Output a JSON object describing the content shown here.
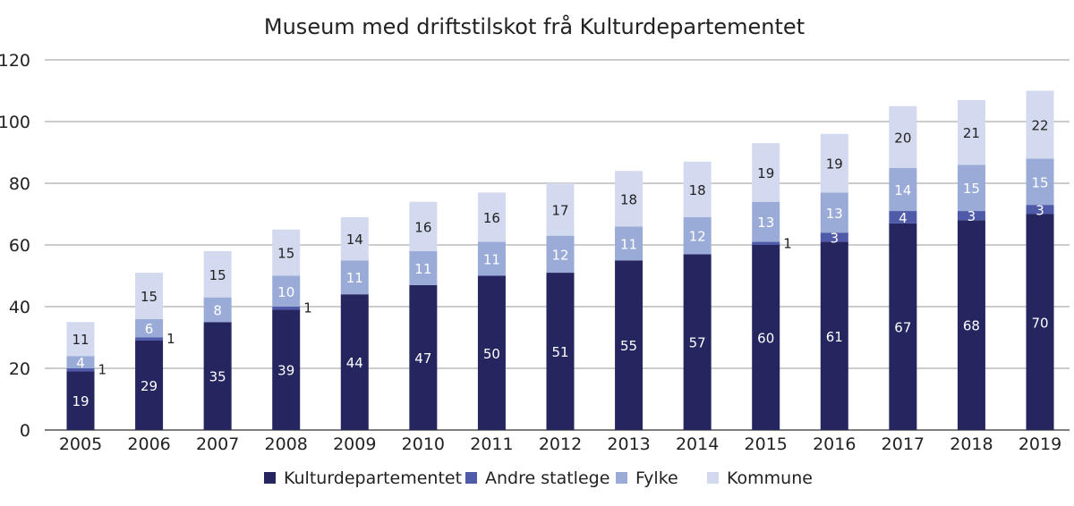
{
  "chart_data": {
    "type": "bar",
    "stacked": true,
    "title": "Museum med driftstilskot frå Kulturdepartementet",
    "xlabel": "",
    "ylabel": "",
    "ylim": [
      0,
      120
    ],
    "yticks": [
      0,
      20,
      40,
      60,
      80,
      100,
      120
    ],
    "grid": true,
    "legend_position": "bottom",
    "categories": [
      "2005",
      "2006",
      "2007",
      "2008",
      "2009",
      "2010",
      "2011",
      "2012",
      "2013",
      "2014",
      "2015",
      "2016",
      "2017",
      "2018",
      "2019"
    ],
    "series": [
      {
        "name": "Kulturdepartementet",
        "color": "#252560",
        "label_color": "#ffffff",
        "values": [
          19,
          29,
          35,
          39,
          44,
          47,
          50,
          51,
          55,
          57,
          60,
          61,
          67,
          68,
          70
        ]
      },
      {
        "name": "Andre statlege",
        "color": "#4f5aa8",
        "label_color": "#ffffff",
        "values": [
          1,
          1,
          0,
          1,
          0,
          0,
          0,
          0,
          0,
          0,
          1,
          3,
          4,
          3,
          3
        ]
      },
      {
        "name": "Fylke",
        "color": "#9aabd8",
        "label_color": "#ffffff",
        "values": [
          4,
          6,
          8,
          10,
          11,
          11,
          11,
          12,
          11,
          12,
          13,
          13,
          14,
          15,
          15
        ]
      },
      {
        "name": "Kommune",
        "color": "#d3d9ee",
        "label_color": "#222222",
        "values": [
          11,
          15,
          15,
          15,
          14,
          16,
          16,
          17,
          18,
          18,
          19,
          19,
          20,
          21,
          22
        ]
      }
    ]
  }
}
